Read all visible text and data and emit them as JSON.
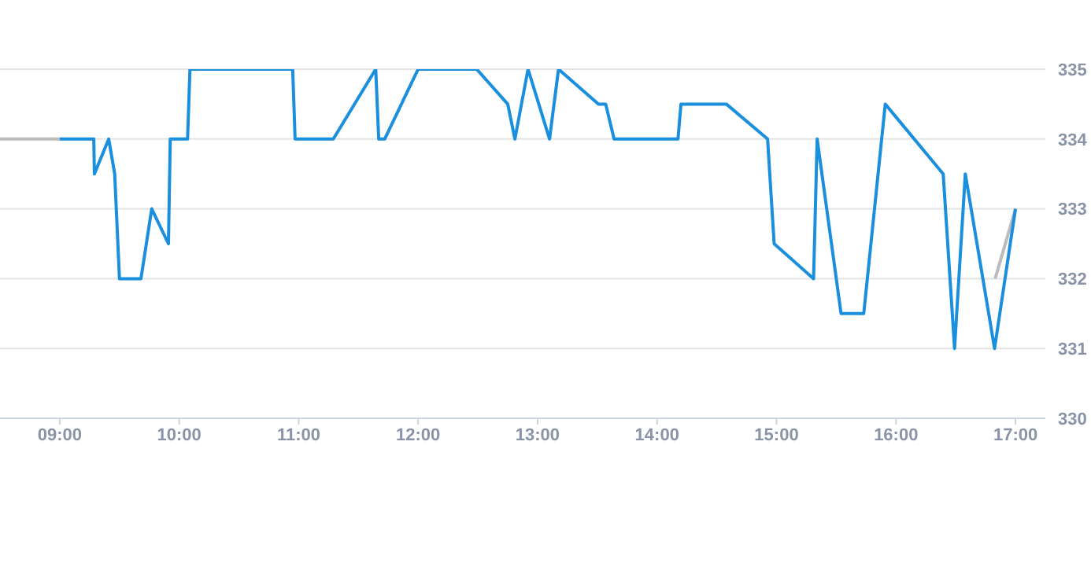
{
  "chart_data": {
    "type": "line",
    "xlim": [
      8.5,
      17.25
    ],
    "xticks": [
      {
        "value": 9,
        "label": "09:00"
      },
      {
        "value": 10,
        "label": "10:00"
      },
      {
        "value": 11,
        "label": "11:00"
      },
      {
        "value": 12,
        "label": "12:00"
      },
      {
        "value": 13,
        "label": "13:00"
      },
      {
        "value": 14,
        "label": "14:00"
      },
      {
        "value": 15,
        "label": "15:00"
      },
      {
        "value": 16,
        "label": "16:00"
      },
      {
        "value": 17,
        "label": "17:00"
      }
    ],
    "ylim": [
      330,
      335
    ],
    "yticks": [
      330,
      331,
      332,
      333,
      334,
      335
    ],
    "grid": "y",
    "marker": "none",
    "line_style": "solid",
    "legend": false,
    "series": [
      {
        "color": "#bbbbbb",
        "x": [
          8.5,
          9
        ],
        "values": [
          334,
          334
        ]
      },
      {
        "color": "#bbbbbb",
        "x": [
          16.83,
          17
        ],
        "values": [
          332,
          333
        ]
      },
      {
        "color": "#1a8fdd",
        "x": [
          9,
          9.285,
          9.29,
          9.41,
          9.46,
          9.5,
          9.68,
          9.77,
          9.91,
          9.925,
          10.07,
          10.09,
          10.95,
          10.97,
          11.29,
          11.645,
          11.67,
          11.72,
          12,
          12.49,
          12.75,
          12.81,
          12.92,
          13.1,
          13.175,
          13.51,
          13.57,
          13.64,
          14.175,
          14.2,
          14.58,
          14.925,
          14.98,
          15.31,
          15.34,
          15.54,
          15.73,
          15.91,
          16.395,
          16.49,
          16.58,
          16.825,
          17
        ],
        "values": [
          334,
          334,
          333.5,
          334,
          333.5,
          332,
          332,
          333,
          332.5,
          334,
          334,
          335,
          335,
          334,
          334,
          335,
          334,
          334,
          335,
          335,
          334.5,
          334,
          335,
          334,
          335,
          334.5,
          334.5,
          334,
          334,
          334.5,
          334.5,
          334,
          332.5,
          332,
          334,
          331.5,
          331.5,
          334.5,
          333.5,
          331,
          333.5,
          331,
          333
        ]
      }
    ]
  }
}
